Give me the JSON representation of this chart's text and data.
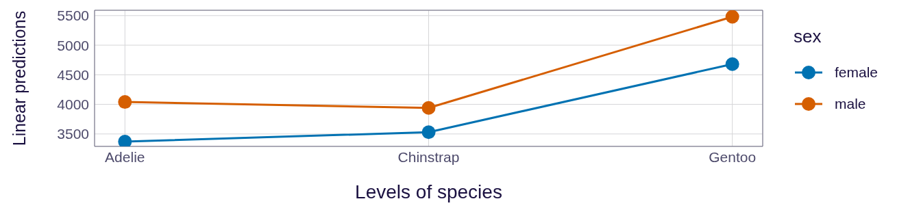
{
  "chart_data": {
    "type": "line",
    "xlabel": "Levels of species",
    "ylabel": "Linear predictions",
    "legend_title": "sex",
    "categories": [
      "Adelie",
      "Chinstrap",
      "Gentoo"
    ],
    "series": [
      {
        "name": "female",
        "color": "#0072b2",
        "values": [
          3370,
          3530,
          4680
        ]
      },
      {
        "name": "male",
        "color": "#d55e00",
        "values": [
          4040,
          3940,
          5480
        ]
      }
    ],
    "ylim": [
      3290,
      5590
    ],
    "yticks": [
      3500,
      4000,
      4500,
      5000,
      5500
    ],
    "grid": true,
    "legend": "right",
    "marker": "circle",
    "line_style": "solid"
  }
}
